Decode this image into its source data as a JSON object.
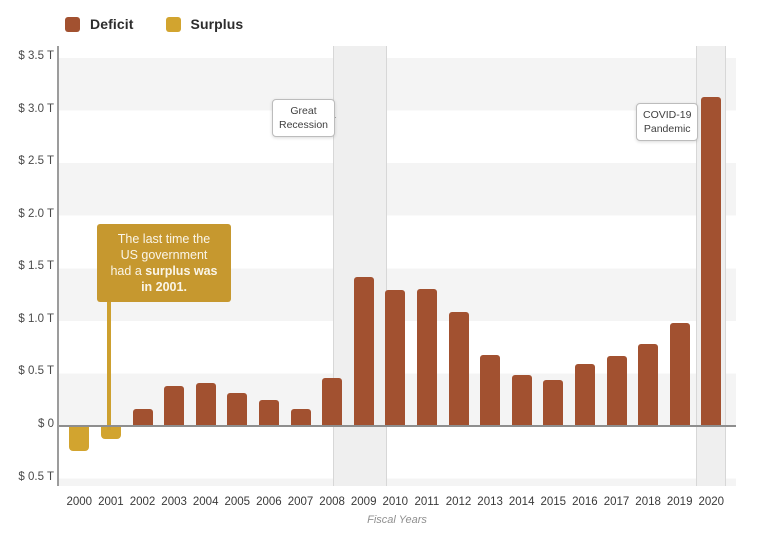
{
  "legend": {
    "items": [
      {
        "label": "Deficit",
        "color": "#A25130"
      },
      {
        "label": "Surplus",
        "color": "#D2A42F"
      }
    ]
  },
  "callout": {
    "bg": "#C6982F",
    "connector_color": "#CDA02F",
    "lines": [
      [
        {
          "t": "The last time the",
          "b": false
        }
      ],
      [
        {
          "t": "US government",
          "b": false
        }
      ],
      [
        {
          "t": "had a ",
          "b": false
        },
        {
          "t": "surplus was",
          "b": true
        }
      ],
      [
        {
          "t": "in 2001.",
          "b": true
        }
      ]
    ]
  },
  "annotations": [
    {
      "line1": "Great",
      "line2": "Recession"
    },
    {
      "line1": "COVID-19",
      "line2": "Pandemic"
    }
  ],
  "chart_data": {
    "type": "bar",
    "title": "",
    "categories": [
      2000,
      2001,
      2002,
      2003,
      2004,
      2005,
      2006,
      2007,
      2008,
      2009,
      2010,
      2011,
      2012,
      2013,
      2014,
      2015,
      2016,
      2017,
      2018,
      2019,
      2020
    ],
    "values": [
      -0.236,
      -0.128,
      0.158,
      0.378,
      0.413,
      0.318,
      0.248,
      0.161,
      0.459,
      1.413,
      1.294,
      1.3,
      1.087,
      0.679,
      0.485,
      0.442,
      0.585,
      0.665,
      0.779,
      0.984,
      3.132
    ],
    "value_units": "trillions of US dollars",
    "sign_convention": "positive = deficit, negative = surplus",
    "deficit_color": "#A25130",
    "surplus_color": "#D2A42F",
    "xlabel": "Fiscal Years",
    "ylabel": "",
    "ylim": [
      -0.57,
      3.61
    ],
    "y_ticks": [
      {
        "value": 3.5,
        "label": "$ 3.5 T"
      },
      {
        "value": 3.0,
        "label": "$ 3.0 T"
      },
      {
        "value": 2.5,
        "label": "$ 2.5 T"
      },
      {
        "value": 2.0,
        "label": "$ 2.0 T"
      },
      {
        "value": 1.5,
        "label": "$ 1.5 T"
      },
      {
        "value": 1.0,
        "label": "$ 1.0 T"
      },
      {
        "value": 0.5,
        "label": "$ 0.5 T"
      },
      {
        "value": 0,
        "label": "$ 0"
      },
      {
        "value": -0.5,
        "label": "$ 0.5 T"
      }
    ],
    "grid": "alternating horizontal stripes every 0.5T, no gridlines",
    "legend_position": "top-left",
    "shaded_regions": [
      {
        "label": "Great Recession",
        "x_start": 2008.03,
        "x_end": 2009.75
      },
      {
        "label": "COVID-19 Pandemic",
        "x_start": 2019.5,
        "x_end": 2020.45
      }
    ]
  }
}
